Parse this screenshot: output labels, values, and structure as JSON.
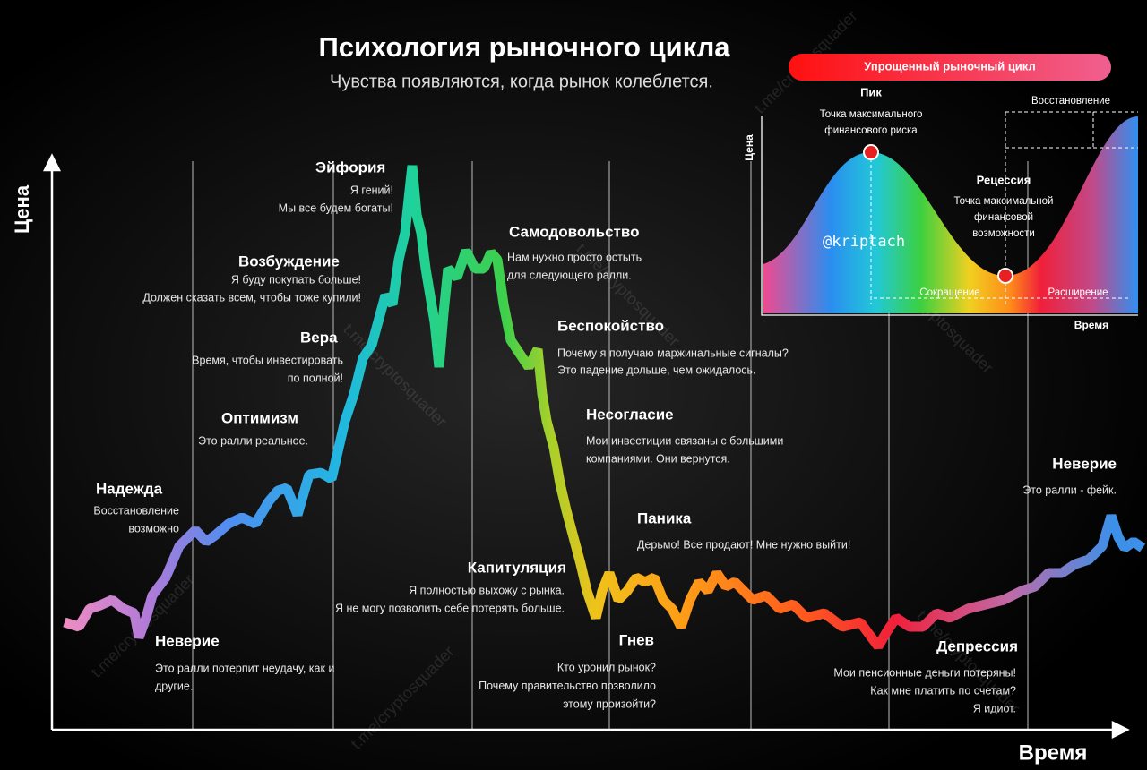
{
  "header": {
    "title": "Психология рыночного цикла",
    "subtitle": "Чувства появляются, когда рынок колеблется."
  },
  "axes": {
    "y": "Цена",
    "x": "Время"
  },
  "stages": [
    {
      "name": "Неверие",
      "lines": [
        "Это ралли потерпит неудачу, как и",
        "другие."
      ]
    },
    {
      "name": "Надежда",
      "lines": [
        "Восстановление",
        "возможно"
      ]
    },
    {
      "name": "Оптимизм",
      "lines": [
        "Это ралли реальное."
      ]
    },
    {
      "name": "Вера",
      "lines": [
        "Время, чтобы инвестировать",
        "по полной!"
      ]
    },
    {
      "name": "Возбуждение",
      "lines": [
        "Я буду покупать больше!",
        "Должен сказать всем, чтобы тоже купили!"
      ]
    },
    {
      "name": "Эйфория",
      "lines": [
        "Я гений!",
        "Мы все будем богаты!"
      ]
    },
    {
      "name": "Самодовольство",
      "lines": [
        "Нам нужно просто остыть",
        "для следующего ралли."
      ]
    },
    {
      "name": "Беспокойство",
      "lines": [
        "Почему я получаю маржинальные сигналы?",
        "Это падение дольше, чем ожидалось."
      ]
    },
    {
      "name": "Несогласие",
      "lines": [
        "Мои инвестиции связаны с большими",
        "компаниями. Они вернутся."
      ]
    },
    {
      "name": "Паника",
      "lines": [
        "Дерьмо! Все продают! Мне нужно выйти!"
      ]
    },
    {
      "name": "Капитуляция",
      "lines": [
        "Я полностью выхожу с рынка.",
        "Я не могу позволить себе потерять больше."
      ]
    },
    {
      "name": "Гнев",
      "lines": [
        "Кто уронил рынок?",
        "Почему правительство позволило",
        "этому произойти?"
      ]
    },
    {
      "name": "Депрессия",
      "lines": [
        "Мои пенсионные деньги потеряны!",
        "Как мне платить по счетам?",
        "Я идиот."
      ]
    },
    {
      "name": "Неверие",
      "lines": [
        "Это ралли - фейк."
      ]
    }
  ],
  "inset": {
    "title": "Упрощенный рыночный цикл",
    "peak": "Пик",
    "peak_note": [
      "Точка максимального",
      "финансового риска"
    ],
    "recovery": "Восстановление",
    "recession": "Рецессия",
    "recession_note": [
      "Точка максимальной",
      "финансовой",
      "возможности"
    ],
    "contraction": "Сокращение",
    "expansion": "Расширение",
    "y": "Цена",
    "x": "Время",
    "handle": "@kriptach"
  },
  "watermark": "t.me/cryptosquader"
}
